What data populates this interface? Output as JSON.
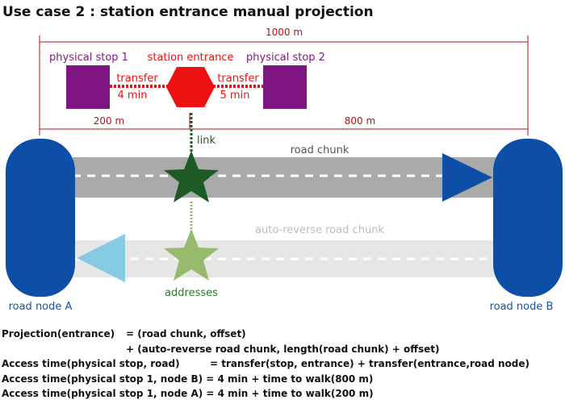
{
  "title": "Use case 2 : station entrance manual projection",
  "dimensions": {
    "total": "1000 m",
    "left": "200 m",
    "right": "800 m"
  },
  "stops": {
    "stop1_label": "physical stop 1",
    "stop2_label": "physical stop 2",
    "entrance_label": "station entrance"
  },
  "transfers": {
    "left_word": "transfer",
    "left_time": "4 min",
    "right_word": "transfer",
    "right_time": "5 min"
  },
  "link_label": "link",
  "addresses_label": "addresses",
  "road_chunk_label": "road chunk",
  "reverse_chunk_label": "auto-reverse road chunk",
  "node_a_label": "road node A",
  "node_b_label": "road node B",
  "colors": {
    "stop": "#7f1580",
    "entrance": "#ee1111",
    "node": "#0d4ea6",
    "road": "#aaaaaa",
    "reverse_road": "#e6e6e6",
    "arrow_forward": "#0d4ea6",
    "arrow_reverse": "#86cbe4",
    "star_dark": "#1e5a25",
    "star_light": "#98ba6c",
    "dimension": "#b5121b"
  },
  "formulas": {
    "row1_left": "Projection(entrance)",
    "row1_right": "= (road chunk, offset)",
    "row2_right": "+ (auto-reverse road chunk, length(road chunk) + offset)",
    "row3_left": "Access time(physical stop, road)",
    "row3_right": "= transfer(stop, entrance) + transfer(entrance,road node)",
    "row4": "Access time(physical stop 1, node B) = 4 min + time to walk(800 m)",
    "row5": "Access time(physical stop 1, node A) = 4 min + time to walk(200 m)"
  }
}
